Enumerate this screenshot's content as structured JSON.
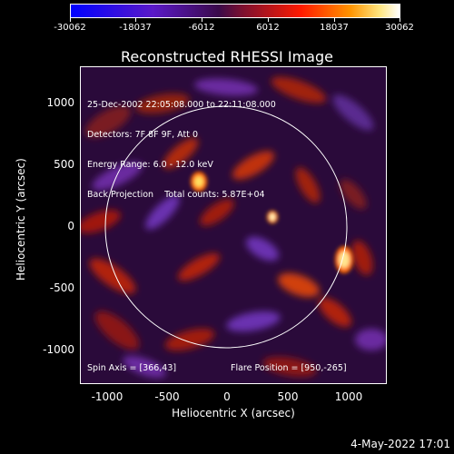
{
  "colorbar": {
    "ticks": [
      "-30062",
      "-18037",
      "-6012",
      "6012",
      "18037",
      "30062"
    ]
  },
  "title": "Reconstructed RHESSI Image",
  "info": {
    "line1": "25-Dec-2002 22:05:08.000 to 22:11:08.000",
    "line2": "Detectors: 7F 8F 9F, Att 0",
    "line3": "Energy Range: 6.0 - 12.0 keV",
    "line4_a": "Back Projection",
    "line4_b": "Total counts: 5.87E+04",
    "spin_axis": "Spin Axis = [366,43]",
    "flare_position": "Flare Position = [950,-265]"
  },
  "axes": {
    "ylabel": "Heliocentric Y (arcsec)",
    "xlabel": "Heliocentric X (arcsec)",
    "yticks": [
      "1000",
      "500",
      "0",
      "-500",
      "-1000"
    ],
    "xticks": [
      "-1000",
      "-500",
      "0",
      "500",
      "1000"
    ]
  },
  "timestamp": "4-May-2022 17:01"
}
